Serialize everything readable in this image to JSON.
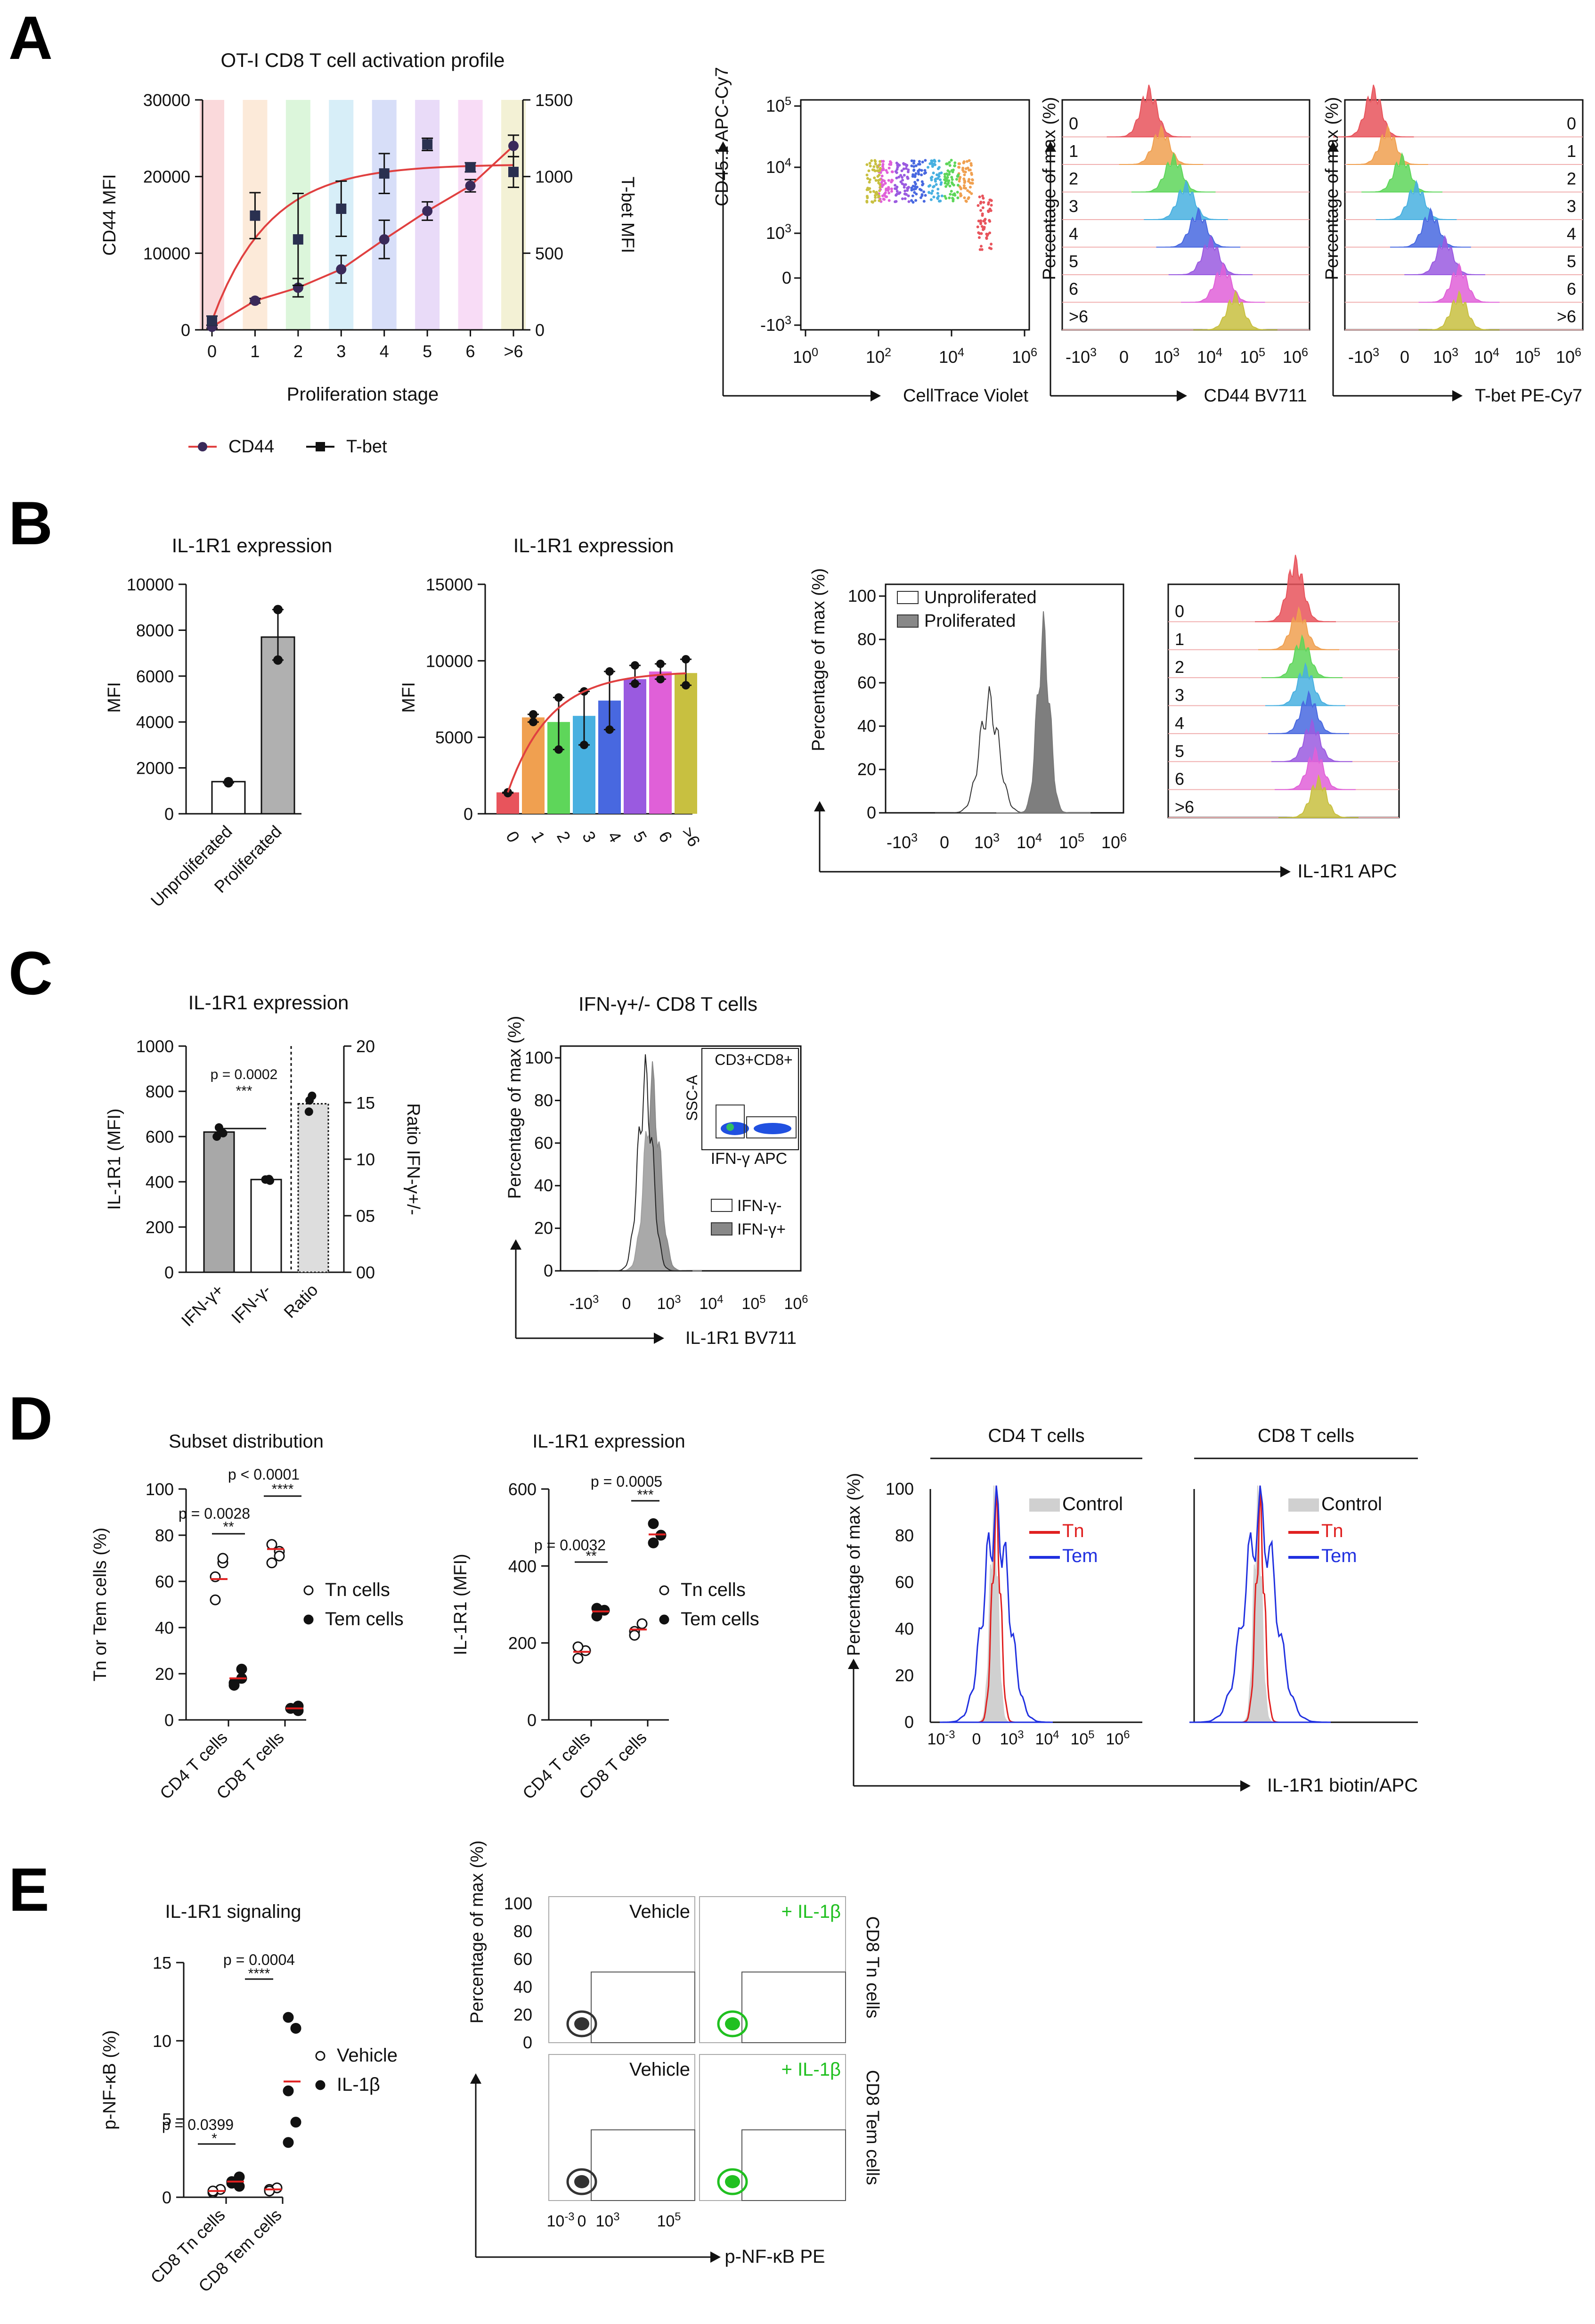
{
  "panels": {
    "a": "A",
    "b": "B",
    "c": "C",
    "d": "D",
    "e": "E"
  },
  "colors": {
    "stage": [
      "#e8545c",
      "#f0a050",
      "#5ed65a",
      "#48b0e0",
      "#4868e0",
      "#9a5ae0",
      "#e060d8",
      "#c8c040"
    ],
    "gray": "#888888",
    "red": "#e02020",
    "blue": "#2030e0",
    "green": "#20c020",
    "dark": "#333333"
  },
  "chart_data": [
    {
      "id": "A1",
      "type": "line",
      "title": "OT-I CD8 T cell activation profile",
      "xlabel": "Proliferation stage",
      "ylabel": "CD44 MFI",
      "y2label": "T-bet MFI",
      "categories": [
        "0",
        "1",
        "2",
        "3",
        "4",
        "5",
        "6",
        ">6"
      ],
      "ylim": [
        0,
        30000
      ],
      "yticks": [
        "0",
        "10000",
        "20000",
        "30000"
      ],
      "y2lim": [
        0,
        1500
      ],
      "y2ticks": [
        "0",
        "500",
        "1000",
        "1500"
      ],
      "series": [
        {
          "name": "CD44",
          "axis": "left",
          "values": [
            400,
            3800,
            5500,
            7900,
            11800,
            15500,
            18800,
            24000
          ],
          "errors": [
            200,
            300,
            1200,
            1800,
            2500,
            1200,
            800,
            1400
          ]
        },
        {
          "name": "T-bet",
          "axis": "right",
          "values": [
            60,
            745,
            590,
            790,
            1020,
            1210,
            1060,
            1030
          ],
          "errors": [
            30,
            150,
            300,
            180,
            130,
            40,
            30,
            100
          ]
        }
      ]
    },
    {
      "id": "A2",
      "type": "scatter",
      "xlabel": "CellTrace Violet",
      "ylabel": "CD45.1 APC-Cy7",
      "xticks": [
        "10^0",
        "10^2",
        "10^4",
        "10^6"
      ],
      "yticks": [
        "-10^3",
        "0",
        "10^3",
        "10^4",
        "10^5"
      ]
    },
    {
      "id": "A3",
      "type": "histogram",
      "xlabel": "CD44 BV711",
      "ylabel": "Percentage of max (%)",
      "stages": [
        "0",
        "1",
        "2",
        "3",
        "4",
        "5",
        "6",
        ">6"
      ],
      "xticks": [
        "-10^3",
        "0",
        "10^3",
        "10^4",
        "10^5",
        "10^6"
      ]
    },
    {
      "id": "A4",
      "type": "histogram",
      "xlabel": "T-bet PE-Cy7",
      "ylabel": "Percentage of max (%)",
      "stages": [
        "0",
        "1",
        "2",
        "3",
        "4",
        "5",
        "6",
        ">6"
      ],
      "xticks": [
        "-10^3",
        "0",
        "10^3",
        "10^4",
        "10^5",
        "10^6"
      ]
    },
    {
      "id": "B1",
      "type": "bar",
      "title": "IL-1R1 expression",
      "ylabel": "MFI",
      "categories": [
        "Unproliferated",
        "Proliferated"
      ],
      "values": [
        1400,
        7700
      ],
      "points": [
        [
          1350,
          1400
        ],
        [
          6700,
          8900
        ]
      ],
      "ylim": [
        0,
        10000
      ],
      "yticks": [
        "0",
        "2000",
        "4000",
        "6000",
        "8000",
        "10000"
      ]
    },
    {
      "id": "B2",
      "type": "bar",
      "title": "IL-1R1 expression",
      "ylabel": "MFI",
      "categories": [
        "0",
        "1",
        "2",
        "3",
        "4",
        "5",
        "6",
        ">6"
      ],
      "values": [
        1400,
        6300,
        6000,
        6400,
        7400,
        8800,
        9300,
        9200
      ],
      "points": [
        [
          1350,
          1400
        ],
        [
          6000,
          6500
        ],
        [
          4200,
          7600
        ],
        [
          4500,
          8000
        ],
        [
          5500,
          9300
        ],
        [
          8500,
          9700
        ],
        [
          8800,
          9800
        ],
        [
          8400,
          10100
        ]
      ],
      "ylim": [
        0,
        15000
      ],
      "yticks": [
        "0",
        "5000",
        "10000",
        "15000"
      ]
    },
    {
      "id": "B3",
      "type": "histogram",
      "xlabel": "IL-1R1 APC",
      "ylabel": "Percentage of max (%)",
      "legend": [
        "Unproliferated",
        "Proliferated"
      ],
      "yticks": [
        "0",
        "20",
        "40",
        "60",
        "80",
        "100"
      ],
      "xticks": [
        "-10^3",
        "0",
        "10^3",
        "10^4",
        "10^5",
        "10^6"
      ],
      "stages": [
        "0",
        "1",
        "2",
        "3",
        "4",
        "5",
        "6",
        ">6"
      ]
    },
    {
      "id": "C1",
      "type": "bar",
      "title": "IL-1R1 expression",
      "ylabel": "IL-1R1 (MFI)",
      "y2label": "Ratio IFN-γ+/-",
      "categories": [
        "IFN-γ+",
        "IFN-γ-",
        "Ratio"
      ],
      "values": [
        620,
        410,
        14.9
      ],
      "points": [
        [
          600,
          640,
          615
        ],
        [
          405,
          410,
          412
        ],
        [
          14.2,
          15.6,
          15.2
        ]
      ],
      "ylim": [
        0,
        1000
      ],
      "yticks": [
        "0",
        "200",
        "400",
        "600",
        "800",
        "1000"
      ],
      "y2ticks": [
        "00",
        "05",
        "10",
        "15",
        "20"
      ],
      "annotation": "p = 0.0002",
      "stars": "***"
    },
    {
      "id": "C2",
      "type": "histogram",
      "title": "IFN-γ+/- CD8 T cells",
      "xlabel": "IL-1R1 BV711",
      "ylabel": "Percentage of max (%)",
      "legend": [
        "IFN-γ-",
        "IFN-γ+"
      ],
      "inset": [
        "CD3+CD8+",
        "SSC-A",
        "IFN-γ APC"
      ],
      "yticks": [
        "0",
        "20",
        "40",
        "60",
        "80",
        "100"
      ],
      "xticks": [
        "-10^3",
        "0",
        "10^3",
        "10^4",
        "10^5",
        "10^6"
      ]
    },
    {
      "id": "D1",
      "type": "scatter",
      "title": "Subset distribution",
      "ylabel": "Tn or Tem cells (%)",
      "categories": [
        "CD4 T cells",
        "CD8 T cells"
      ],
      "series": [
        {
          "name": "Tn cells",
          "points": [
            [
              62,
              68,
              52,
              70
            ],
            [
              76,
              73,
              68,
              71
            ]
          ],
          "mean": [
            61,
            74
          ]
        },
        {
          "name": "Tem cells",
          "points": [
            [
              16,
              18,
              15,
              22
            ],
            [
              5,
              4,
              5,
              6
            ]
          ],
          "mean": [
            18,
            5
          ]
        }
      ],
      "ylim": [
        0,
        100
      ],
      "yticks": [
        "0",
        "20",
        "40",
        "60",
        "80",
        "100"
      ],
      "annotations": [
        "p = 0.0028",
        "p < 0.0001"
      ],
      "stars": [
        "**",
        "****"
      ]
    },
    {
      "id": "D2",
      "type": "scatter",
      "title": "IL-1R1 expression",
      "ylabel": "IL-1R1 (MFI)",
      "categories": [
        "CD4 T cells",
        "CD8 T cells"
      ],
      "series": [
        {
          "name": "Tn cells",
          "points": [
            [
              160,
              180,
              190
            ],
            [
              230,
              250,
              220
            ]
          ],
          "mean": [
            177,
            235
          ]
        },
        {
          "name": "Tem cells",
          "points": [
            [
              270,
              285,
              290
            ],
            [
              460,
              480,
              510
            ]
          ],
          "mean": [
            282,
            482
          ]
        }
      ],
      "ylim": [
        0,
        600
      ],
      "yticks": [
        "0",
        "200",
        "400",
        "600"
      ],
      "annotations": [
        "p = 0.0032",
        "p = 0.0005"
      ],
      "stars": [
        "**",
        "***"
      ]
    },
    {
      "id": "D3",
      "type": "histogram",
      "xlabel": "IL-1R1 biotin/APC",
      "ylabel": "Percentage of max (%)",
      "groups": [
        "CD4 T cells",
        "CD8 T cells"
      ],
      "legend": [
        "Control",
        "Tn",
        "Tem"
      ],
      "yticks": [
        "0",
        "20",
        "40",
        "60",
        "80",
        "100"
      ],
      "xticks": [
        "10^-3",
        "0",
        "10^3",
        "10^4",
        "10^5",
        "10^6"
      ]
    },
    {
      "id": "E1",
      "type": "scatter",
      "title": "IL-1R1 signaling",
      "ylabel": "p-NF-κB (%)",
      "categories": [
        "CD8 Tn cells",
        "CD8 Tem cells"
      ],
      "series": [
        {
          "name": "Vehicle",
          "points": [
            [
              0.3,
              0.5,
              0.4
            ],
            [
              0.5,
              0.6,
              0.4
            ]
          ],
          "mean": [
            0.4,
            0.5
          ]
        },
        {
          "name": "IL-1β",
          "points": [
            [
              0.9,
              1.3,
              1.0,
              0.7
            ],
            [
              11.5,
              10.8,
              6.8,
              4.8,
              3.5
            ]
          ],
          "mean": [
            1.0,
            7.4
          ]
        }
      ],
      "ylim": [
        0,
        15
      ],
      "yticks": [
        "0",
        "5",
        "10",
        "15"
      ],
      "annotations": [
        "p = 0.0399",
        "p = 0.0004"
      ],
      "stars": [
        "*",
        "****"
      ]
    },
    {
      "id": "E2",
      "type": "scatter",
      "xlabel": "p-NF-κB PE",
      "ylabel": "Percentage of max (%)",
      "labels": [
        "Vehicle",
        "+ IL-1β",
        "Vehicle",
        "+ IL-1β"
      ],
      "rows": [
        "CD8 Tn cells",
        "CD8 Tem cells"
      ],
      "yticks": [
        "0",
        "20",
        "40",
        "60",
        "80",
        "100"
      ],
      "xticks": [
        "10^-3",
        "0",
        "10^3",
        "10^5"
      ]
    }
  ]
}
